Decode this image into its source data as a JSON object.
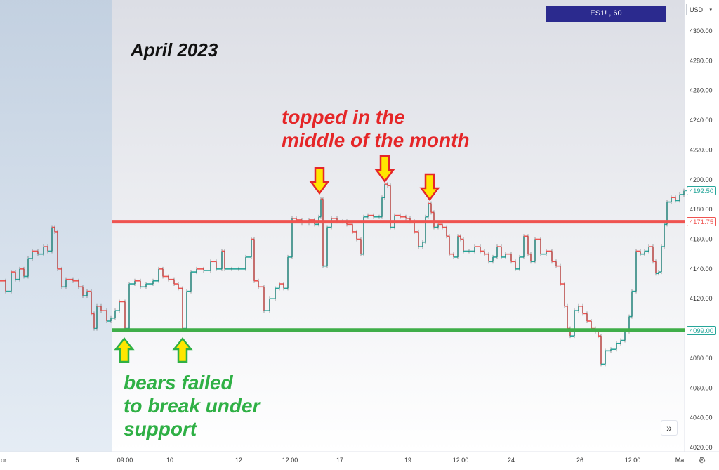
{
  "chart_data": {
    "type": "candlestick",
    "symbol_label": "ES1! , 60",
    "currency": "USD",
    "ylim": [
      4015,
      4310
    ],
    "y_ticks": [
      4020,
      4040,
      4060,
      4080,
      4100,
      4120,
      4140,
      4160,
      4180,
      4200,
      4220,
      4240,
      4260,
      4280,
      4300
    ],
    "y_tick_labels": [
      "4020.00",
      "4040.00",
      "4060.00",
      "4080.00",
      "4100.00",
      "4120.00",
      "4140.00",
      "4160.00",
      "4180.00",
      "4200.00",
      "4220.00",
      "4240.00",
      "4260.00",
      "4280.00",
      "4300.00"
    ],
    "x_labels": [
      "or",
      "5",
      "09:00",
      "10",
      "12",
      "12:00",
      "17",
      "19",
      "12:00",
      "24",
      "26",
      "12:00",
      "Ma"
    ],
    "price_series": [
      {
        "x": 0,
        "y": 4132
      },
      {
        "x": 8,
        "y": 4125
      },
      {
        "x": 16,
        "y": 4138
      },
      {
        "x": 22,
        "y": 4133
      },
      {
        "x": 28,
        "y": 4140
      },
      {
        "x": 34,
        "y": 4135
      },
      {
        "x": 40,
        "y": 4147
      },
      {
        "x": 46,
        "y": 4152
      },
      {
        "x": 54,
        "y": 4150
      },
      {
        "x": 62,
        "y": 4155
      },
      {
        "x": 68,
        "y": 4152
      },
      {
        "x": 74,
        "y": 4168
      },
      {
        "x": 78,
        "y": 4165
      },
      {
        "x": 82,
        "y": 4140
      },
      {
        "x": 88,
        "y": 4128
      },
      {
        "x": 94,
        "y": 4133
      },
      {
        "x": 104,
        "y": 4132
      },
      {
        "x": 112,
        "y": 4128
      },
      {
        "x": 118,
        "y": 4122
      },
      {
        "x": 124,
        "y": 4125
      },
      {
        "x": 130,
        "y": 4110
      },
      {
        "x": 134,
        "y": 4100
      },
      {
        "x": 138,
        "y": 4115
      },
      {
        "x": 144,
        "y": 4112
      },
      {
        "x": 152,
        "y": 4105
      },
      {
        "x": 158,
        "y": 4107
      },
      {
        "x": 164,
        "y": 4112
      },
      {
        "x": 170,
        "y": 4118
      },
      {
        "x": 178,
        "y": 4100
      },
      {
        "x": 184,
        "y": 4130
      },
      {
        "x": 192,
        "y": 4132
      },
      {
        "x": 200,
        "y": 4128
      },
      {
        "x": 208,
        "y": 4130
      },
      {
        "x": 218,
        "y": 4132
      },
      {
        "x": 226,
        "y": 4140
      },
      {
        "x": 232,
        "y": 4135
      },
      {
        "x": 240,
        "y": 4133
      },
      {
        "x": 248,
        "y": 4130
      },
      {
        "x": 254,
        "y": 4127
      },
      {
        "x": 260,
        "y": 4100
      },
      {
        "x": 266,
        "y": 4125
      },
      {
        "x": 272,
        "y": 4138
      },
      {
        "x": 280,
        "y": 4140
      },
      {
        "x": 290,
        "y": 4139
      },
      {
        "x": 300,
        "y": 4145
      },
      {
        "x": 308,
        "y": 4140
      },
      {
        "x": 316,
        "y": 4152
      },
      {
        "x": 320,
        "y": 4140
      },
      {
        "x": 330,
        "y": 4140
      },
      {
        "x": 340,
        "y": 4140
      },
      {
        "x": 350,
        "y": 4148
      },
      {
        "x": 358,
        "y": 4160
      },
      {
        "x": 362,
        "y": 4132
      },
      {
        "x": 368,
        "y": 4128
      },
      {
        "x": 376,
        "y": 4112
      },
      {
        "x": 384,
        "y": 4120
      },
      {
        "x": 392,
        "y": 4127
      },
      {
        "x": 398,
        "y": 4130
      },
      {
        "x": 404,
        "y": 4127
      },
      {
        "x": 410,
        "y": 4148
      },
      {
        "x": 416,
        "y": 4174
      },
      {
        "x": 422,
        "y": 4173
      },
      {
        "x": 430,
        "y": 4171
      },
      {
        "x": 440,
        "y": 4173
      },
      {
        "x": 448,
        "y": 4170
      },
      {
        "x": 454,
        "y": 4175
      },
      {
        "x": 457,
        "y": 4187
      },
      {
        "x": 460,
        "y": 4142
      },
      {
        "x": 466,
        "y": 4168
      },
      {
        "x": 472,
        "y": 4174
      },
      {
        "x": 480,
        "y": 4172
      },
      {
        "x": 488,
        "y": 4172
      },
      {
        "x": 494,
        "y": 4170
      },
      {
        "x": 502,
        "y": 4165
      },
      {
        "x": 508,
        "y": 4160
      },
      {
        "x": 514,
        "y": 4150
      },
      {
        "x": 518,
        "y": 4175
      },
      {
        "x": 524,
        "y": 4176
      },
      {
        "x": 532,
        "y": 4175
      },
      {
        "x": 540,
        "y": 4175
      },
      {
        "x": 544,
        "y": 4188
      },
      {
        "x": 548,
        "y": 4197
      },
      {
        "x": 552,
        "y": 4196
      },
      {
        "x": 556,
        "y": 4168
      },
      {
        "x": 562,
        "y": 4176
      },
      {
        "x": 570,
        "y": 4175
      },
      {
        "x": 578,
        "y": 4174
      },
      {
        "x": 584,
        "y": 4172
      },
      {
        "x": 590,
        "y": 4165
      },
      {
        "x": 596,
        "y": 4155
      },
      {
        "x": 602,
        "y": 4158
      },
      {
        "x": 606,
        "y": 4175
      },
      {
        "x": 610,
        "y": 4184
      },
      {
        "x": 614,
        "y": 4178
      },
      {
        "x": 618,
        "y": 4168
      },
      {
        "x": 624,
        "y": 4170
      },
      {
        "x": 630,
        "y": 4168
      },
      {
        "x": 636,
        "y": 4162
      },
      {
        "x": 640,
        "y": 4150
      },
      {
        "x": 646,
        "y": 4148
      },
      {
        "x": 652,
        "y": 4162
      },
      {
        "x": 656,
        "y": 4160
      },
      {
        "x": 660,
        "y": 4152
      },
      {
        "x": 668,
        "y": 4152
      },
      {
        "x": 676,
        "y": 4155
      },
      {
        "x": 684,
        "y": 4152
      },
      {
        "x": 690,
        "y": 4150
      },
      {
        "x": 696,
        "y": 4145
      },
      {
        "x": 702,
        "y": 4148
      },
      {
        "x": 708,
        "y": 4155
      },
      {
        "x": 714,
        "y": 4148
      },
      {
        "x": 720,
        "y": 4150
      },
      {
        "x": 728,
        "y": 4145
      },
      {
        "x": 734,
        "y": 4140
      },
      {
        "x": 740,
        "y": 4148
      },
      {
        "x": 746,
        "y": 4162
      },
      {
        "x": 752,
        "y": 4150
      },
      {
        "x": 756,
        "y": 4145
      },
      {
        "x": 762,
        "y": 4160
      },
      {
        "x": 770,
        "y": 4150
      },
      {
        "x": 778,
        "y": 4152
      },
      {
        "x": 786,
        "y": 4145
      },
      {
        "x": 792,
        "y": 4142
      },
      {
        "x": 798,
        "y": 4130
      },
      {
        "x": 804,
        "y": 4115
      },
      {
        "x": 808,
        "y": 4100
      },
      {
        "x": 812,
        "y": 4095
      },
      {
        "x": 818,
        "y": 4112
      },
      {
        "x": 824,
        "y": 4115
      },
      {
        "x": 830,
        "y": 4110
      },
      {
        "x": 836,
        "y": 4105
      },
      {
        "x": 842,
        "y": 4100
      },
      {
        "x": 848,
        "y": 4098
      },
      {
        "x": 852,
        "y": 4095
      },
      {
        "x": 856,
        "y": 4076
      },
      {
        "x": 862,
        "y": 4085
      },
      {
        "x": 870,
        "y": 4086
      },
      {
        "x": 878,
        "y": 4090
      },
      {
        "x": 884,
        "y": 4092
      },
      {
        "x": 890,
        "y": 4098
      },
      {
        "x": 896,
        "y": 4108
      },
      {
        "x": 900,
        "y": 4125
      },
      {
        "x": 906,
        "y": 4152
      },
      {
        "x": 912,
        "y": 4150
      },
      {
        "x": 918,
        "y": 4152
      },
      {
        "x": 924,
        "y": 4155
      },
      {
        "x": 930,
        "y": 4145
      },
      {
        "x": 934,
        "y": 4137
      },
      {
        "x": 938,
        "y": 4138
      },
      {
        "x": 942,
        "y": 4155
      },
      {
        "x": 946,
        "y": 4170
      },
      {
        "x": 950,
        "y": 4185
      },
      {
        "x": 956,
        "y": 4188
      },
      {
        "x": 962,
        "y": 4186
      },
      {
        "x": 968,
        "y": 4190
      },
      {
        "x": 974,
        "y": 4192.5
      }
    ],
    "lines": {
      "resistance": {
        "value": 4171.75,
        "label": "4171.75",
        "color": "#ef5350"
      },
      "support": {
        "value": 4099.0,
        "label": "4099.00",
        "color": "#3fae49"
      },
      "last_price": {
        "value": 4192.5,
        "label": "4192.50",
        "color": "#26a69a"
      }
    },
    "annotations": {
      "title": "April 2023",
      "top_text_line1": "topped in the",
      "top_text_line2": "middle of the month",
      "bears_line1": "bears failed",
      "bears_line2": "to break under",
      "bears_line3": "support"
    },
    "arrows": {
      "down_color": "#ffe600",
      "down_outline": "#e52628",
      "up_color": "#ffe600",
      "up_outline": "#2fb045"
    }
  },
  "ui": {
    "scroll_button_label": "»",
    "settings_icon_glyph": "⚙",
    "currency_chevron": "▾",
    "icons": [
      "chevron-double-right-icon",
      "gear-icon",
      "chevron-down-icon"
    ]
  }
}
